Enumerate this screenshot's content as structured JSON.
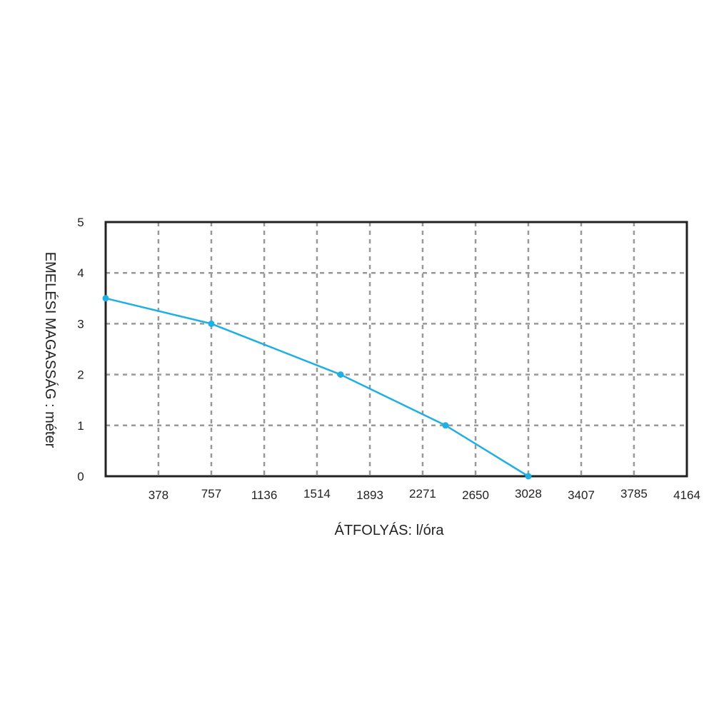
{
  "chart_data": {
    "type": "line",
    "title": "",
    "xlabel": "ÁTFOLYÁS: l/óra",
    "ylabel": "EMELÉSI MAGASSÁG : méter",
    "xlim": [
      0,
      4164
    ],
    "ylim": [
      0,
      5
    ],
    "x_ticks": [
      "378",
      "757",
      "1136",
      "1514",
      "1893",
      "2271",
      "2650",
      "3028",
      "3407",
      "3785",
      "4164"
    ],
    "y_ticks": [
      "0",
      "1",
      "2",
      "3",
      "4",
      "5"
    ],
    "grid": true,
    "series": [
      {
        "color": "#1fb0e3",
        "points": [
          {
            "x": 0,
            "y": 3.5
          },
          {
            "x": 757,
            "y": 3.0
          },
          {
            "x": 1683,
            "y": 2.0
          },
          {
            "x": 2435,
            "y": 1.0
          },
          {
            "x": 3028,
            "y": 0.0
          }
        ]
      }
    ],
    "colors": {
      "line": "#1fb0e3",
      "grid": "#999999",
      "frame": "#222222"
    }
  }
}
